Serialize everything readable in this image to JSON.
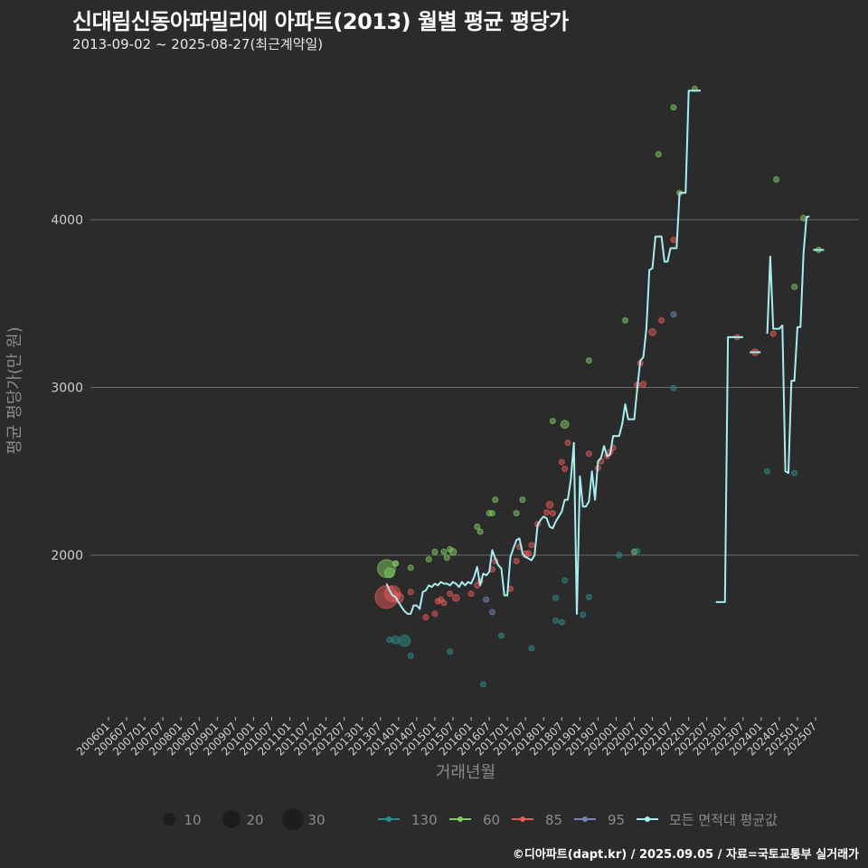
{
  "title": "신대림신동아파밀리에 아파트(2013) 월별 평균 평당가",
  "subtitle": "2013-09-02 ~ 2025-08-27(최근계약일)",
  "caption": "©디아파트(dapt.kr) / 2025.09.05 / 자료=국토교통부 실거래가",
  "chart_data": {
    "type": "scatter+line",
    "xlabel": "거래년월",
    "ylabel": "평균 평당가(만 원)",
    "xlim": [
      "2005-10",
      "2025-12"
    ],
    "ylim": [
      1050,
      4950
    ],
    "yticks": [
      2000,
      3000,
      4000
    ],
    "xticks": [
      "200601",
      "200607",
      "200701",
      "200707",
      "200801",
      "200807",
      "200901",
      "200907",
      "201001",
      "201007",
      "201101",
      "201107",
      "201201",
      "201207",
      "201301",
      "201307",
      "201401",
      "201407",
      "201501",
      "201507",
      "201601",
      "201607",
      "201701",
      "201707",
      "201801",
      "201807",
      "201901",
      "201907",
      "202001",
      "202007",
      "202101",
      "202107",
      "202201",
      "202207",
      "202301",
      "202307",
      "202401",
      "202407",
      "202501",
      "202507"
    ],
    "grid": true,
    "legend_position": "bottom",
    "size_legend": {
      "values": [
        10,
        20,
        30
      ],
      "labels": [
        "10",
        "20",
        "30"
      ]
    },
    "groups": [
      {
        "name": "130",
        "color": "#2e8b8b"
      },
      {
        "name": "60",
        "color": "#7ccc62"
      },
      {
        "name": "85",
        "color": "#e85a5a"
      },
      {
        "name": "95",
        "color": "#7385b8"
      }
    ],
    "avg_line": {
      "name": "모든 면적대 평균값",
      "color": "#a8eef0",
      "segments": [
        {
          "start": "2013-09",
          "values": [
            1830,
            1790,
            1760,
            1750,
            1720,
            1690,
            1665,
            1650,
            1650,
            1700,
            1700,
            1680,
            1780,
            1790,
            1820,
            1810,
            1830,
            1820,
            1840,
            1830,
            1830,
            1820,
            1840,
            1830,
            1810,
            1840,
            1820,
            1840,
            1830,
            1870,
            1930,
            1820,
            1890,
            1880,
            1900,
            2030,
            1980,
            1940,
            1920,
            1760,
            1760,
            1990,
            2040,
            2090,
            2100,
            2010,
            1990,
            1980,
            1970,
            2000,
            2180,
            2210,
            2230,
            2220,
            2170,
            2160,
            2200,
            2230,
            2260,
            2330,
            2330,
            2450,
            2670,
            1650,
            2470,
            2290,
            2290,
            2320,
            2500,
            2330,
            2560,
            2580,
            2650,
            2590,
            2600,
            2710,
            2710,
            2710,
            2780,
            2900,
            2810,
            2810,
            2810,
            3000,
            3160,
            3180,
            3350,
            3700,
            3710,
            3900,
            3900,
            3900,
            3750,
            3750,
            3830,
            3830,
            3830,
            4160,
            4160,
            4160,
            4770,
            4770,
            4770,
            4770,
            4770
          ]
        },
        {
          "start": "2022-10",
          "values": [
            1720,
            1720,
            1720,
            1720,
            3300,
            3300,
            3300,
            3300,
            3300,
            3300
          ]
        },
        {
          "start": "2023-11",
          "values": [
            3210
          ]
        },
        {
          "start": "2024-03",
          "values": [
            3320,
            3780,
            3350,
            3350,
            3350,
            3370,
            2500,
            2490,
            3040,
            3040,
            3360,
            3360,
            3800,
            4015,
            4020
          ]
        },
        {
          "start": "2025-08",
          "values": [
            3820
          ]
        }
      ]
    },
    "points": [
      {
        "date": "2013-09",
        "value": 1920,
        "n": 20,
        "group": "60"
      },
      {
        "date": "2013-10",
        "value": 1895,
        "n": 6,
        "group": "60"
      },
      {
        "date": "2013-12",
        "value": 1950,
        "n": 1,
        "group": "60"
      },
      {
        "date": "2013-12",
        "value": 1950,
        "n": 1,
        "group": "60"
      },
      {
        "date": "2014-05",
        "value": 1925,
        "n": 1,
        "group": "60"
      },
      {
        "date": "2014-11",
        "value": 1975,
        "n": 1,
        "group": "60"
      },
      {
        "date": "2015-01",
        "value": 2020,
        "n": 1,
        "group": "60"
      },
      {
        "date": "2015-04",
        "value": 2020,
        "n": 1,
        "group": "60"
      },
      {
        "date": "2015-05",
        "value": 1985,
        "n": 1,
        "group": "60"
      },
      {
        "date": "2015-06",
        "value": 2035,
        "n": 1,
        "group": "60"
      },
      {
        "date": "2015-07",
        "value": 2020,
        "n": 3,
        "group": "60"
      },
      {
        "date": "2016-03",
        "value": 2170,
        "n": 1,
        "group": "60"
      },
      {
        "date": "2016-04",
        "value": 2140,
        "n": 1,
        "group": "60"
      },
      {
        "date": "2016-07",
        "value": 2250,
        "n": 1,
        "group": "60"
      },
      {
        "date": "2016-08",
        "value": 2250,
        "n": 1,
        "group": "60"
      },
      {
        "date": "2016-09",
        "value": 2330,
        "n": 1,
        "group": "60"
      },
      {
        "date": "2017-04",
        "value": 2250,
        "n": 1,
        "group": "60"
      },
      {
        "date": "2017-06",
        "value": 2330,
        "n": 1,
        "group": "60"
      },
      {
        "date": "2018-04",
        "value": 2800,
        "n": 1,
        "group": "60"
      },
      {
        "date": "2018-08",
        "value": 2780,
        "n": 4,
        "group": "60"
      },
      {
        "date": "2019-04",
        "value": 3160,
        "n": 1,
        "group": "60"
      },
      {
        "date": "2020-04",
        "value": 3400,
        "n": 1,
        "group": "60"
      },
      {
        "date": "2020-07",
        "value": 2020,
        "n": 1,
        "group": "60"
      },
      {
        "date": "2021-03",
        "value": 4390,
        "n": 1,
        "group": "60"
      },
      {
        "date": "2021-08",
        "value": 4670,
        "n": 1,
        "group": "60"
      },
      {
        "date": "2021-10",
        "value": 4160,
        "n": 1,
        "group": "60"
      },
      {
        "date": "2022-03",
        "value": 4780,
        "n": 1,
        "group": "60"
      },
      {
        "date": "2024-06",
        "value": 4240,
        "n": 1,
        "group": "60"
      },
      {
        "date": "2024-12",
        "value": 3600,
        "n": 1,
        "group": "60"
      },
      {
        "date": "2025-03",
        "value": 4010,
        "n": 1,
        "group": "60"
      },
      {
        "date": "2025-08",
        "value": 3820,
        "n": 1,
        "group": "60"
      },
      {
        "date": "2013-09",
        "value": 1750,
        "n": 32,
        "group": "85"
      },
      {
        "date": "2013-11",
        "value": 1770,
        "n": 16,
        "group": "85"
      },
      {
        "date": "2014-01",
        "value": 1745,
        "n": 6,
        "group": "85"
      },
      {
        "date": "2014-05",
        "value": 1780,
        "n": 1,
        "group": "85"
      },
      {
        "date": "2014-10",
        "value": 1630,
        "n": 1,
        "group": "85"
      },
      {
        "date": "2015-01",
        "value": 1650,
        "n": 1,
        "group": "85"
      },
      {
        "date": "2015-02",
        "value": 1725,
        "n": 1,
        "group": "85"
      },
      {
        "date": "2015-03",
        "value": 1735,
        "n": 2,
        "group": "85"
      },
      {
        "date": "2015-04",
        "value": 1715,
        "n": 1,
        "group": "85"
      },
      {
        "date": "2015-06",
        "value": 1770,
        "n": 1,
        "group": "85"
      },
      {
        "date": "2015-08",
        "value": 1745,
        "n": 3,
        "group": "85"
      },
      {
        "date": "2016-01",
        "value": 1770,
        "n": 1,
        "group": "85"
      },
      {
        "date": "2016-03",
        "value": 1820,
        "n": 1,
        "group": "85"
      },
      {
        "date": "2016-04",
        "value": 1845,
        "n": 1,
        "group": "85"
      },
      {
        "date": "2016-08",
        "value": 1915,
        "n": 1,
        "group": "85"
      },
      {
        "date": "2016-09",
        "value": 1965,
        "n": 1,
        "group": "85"
      },
      {
        "date": "2017-02",
        "value": 1800,
        "n": 1,
        "group": "85"
      },
      {
        "date": "2017-04",
        "value": 1965,
        "n": 1,
        "group": "85"
      },
      {
        "date": "2017-05",
        "value": 2050,
        "n": 1,
        "group": "85"
      },
      {
        "date": "2017-07",
        "value": 2005,
        "n": 3,
        "group": "85"
      },
      {
        "date": "2017-08",
        "value": 2010,
        "n": 2,
        "group": "85"
      },
      {
        "date": "2017-09",
        "value": 2060,
        "n": 1,
        "group": "85"
      },
      {
        "date": "2017-11",
        "value": 2185,
        "n": 1,
        "group": "85"
      },
      {
        "date": "2018-02",
        "value": 2255,
        "n": 1,
        "group": "85"
      },
      {
        "date": "2018-03",
        "value": 2300,
        "n": 3,
        "group": "85"
      },
      {
        "date": "2018-04",
        "value": 2250,
        "n": 1,
        "group": "85"
      },
      {
        "date": "2018-07",
        "value": 2555,
        "n": 1,
        "group": "85"
      },
      {
        "date": "2018-08",
        "value": 2515,
        "n": 1,
        "group": "85"
      },
      {
        "date": "2018-09",
        "value": 2670,
        "n": 1,
        "group": "85"
      },
      {
        "date": "2019-04",
        "value": 2605,
        "n": 1,
        "group": "85"
      },
      {
        "date": "2019-07",
        "value": 2520,
        "n": 1,
        "group": "85"
      },
      {
        "date": "2019-08",
        "value": 2560,
        "n": 1,
        "group": "85"
      },
      {
        "date": "2019-10",
        "value": 2590,
        "n": 1,
        "group": "85"
      },
      {
        "date": "2019-11",
        "value": 2615,
        "n": 2,
        "group": "85"
      },
      {
        "date": "2019-12",
        "value": 2640,
        "n": 1,
        "group": "85"
      },
      {
        "date": "2020-08",
        "value": 3015,
        "n": 2,
        "group": "85"
      },
      {
        "date": "2020-09",
        "value": 3145,
        "n": 1,
        "group": "85"
      },
      {
        "date": "2020-10",
        "value": 3020,
        "n": 2,
        "group": "85"
      },
      {
        "date": "2021-01",
        "value": 3330,
        "n": 3,
        "group": "85"
      },
      {
        "date": "2021-04",
        "value": 3400,
        "n": 1,
        "group": "85"
      },
      {
        "date": "2021-08",
        "value": 3880,
        "n": 1,
        "group": "85"
      },
      {
        "date": "2023-05",
        "value": 3300,
        "n": 1,
        "group": "85"
      },
      {
        "date": "2023-11",
        "value": 3210,
        "n": 3,
        "group": "85"
      },
      {
        "date": "2024-05",
        "value": 3320,
        "n": 1,
        "group": "85"
      },
      {
        "date": "2016-06",
        "value": 1735,
        "n": 1,
        "group": "95"
      },
      {
        "date": "2016-08",
        "value": 1660,
        "n": 1,
        "group": "95"
      },
      {
        "date": "2021-08",
        "value": 3435,
        "n": 1,
        "group": "95"
      },
      {
        "date": "2013-10",
        "value": 1495,
        "n": 2,
        "group": "130"
      },
      {
        "date": "2013-12",
        "value": 1495,
        "n": 4,
        "group": "130"
      },
      {
        "date": "2014-03",
        "value": 1490,
        "n": 8,
        "group": "130"
      },
      {
        "date": "2014-05",
        "value": 1400,
        "n": 1,
        "group": "130"
      },
      {
        "date": "2015-06",
        "value": 1425,
        "n": 1,
        "group": "130"
      },
      {
        "date": "2016-05",
        "value": 1230,
        "n": 1,
        "group": "130"
      },
      {
        "date": "2016-11",
        "value": 1520,
        "n": 1,
        "group": "130"
      },
      {
        "date": "2017-09",
        "value": 1445,
        "n": 1,
        "group": "130"
      },
      {
        "date": "2018-08",
        "value": 1850,
        "n": 1,
        "group": "130"
      },
      {
        "date": "2018-05",
        "value": 1610,
        "n": 1,
        "group": "130"
      },
      {
        "date": "2018-07",
        "value": 1600,
        "n": 1,
        "group": "130"
      },
      {
        "date": "2018-05",
        "value": 1745,
        "n": 1,
        "group": "130"
      },
      {
        "date": "2019-04",
        "value": 1750,
        "n": 1,
        "group": "130"
      },
      {
        "date": "2019-02",
        "value": 1645,
        "n": 1,
        "group": "130"
      },
      {
        "date": "2020-02",
        "value": 2000,
        "n": 1,
        "group": "130"
      },
      {
        "date": "2020-08",
        "value": 2025,
        "n": 1,
        "group": "130"
      },
      {
        "date": "2021-08",
        "value": 2995,
        "n": 1,
        "group": "130"
      },
      {
        "date": "2024-03",
        "value": 2500,
        "n": 1,
        "group": "130"
      },
      {
        "date": "2024-12",
        "value": 2490,
        "n": 1,
        "group": "130"
      }
    ]
  }
}
